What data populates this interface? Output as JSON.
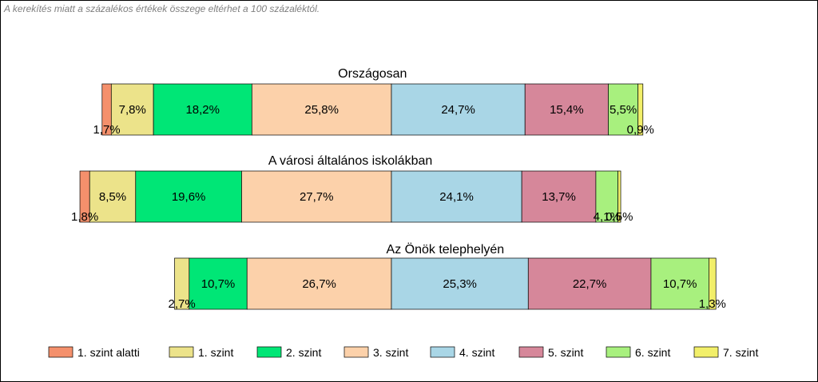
{
  "note": "A kerekítés miatt a  százalékos értékek összege eltérhet a 100 százaléktól.",
  "chart_data": {
    "type": "bar",
    "orientation": "horizontal-stacked",
    "categories": [
      "1. szint alatti",
      "1. szint",
      "2. szint",
      "3. szint",
      "4. szint",
      "5. szint",
      "6. szint",
      "7. szint"
    ],
    "colors": [
      "#f4906c",
      "#ece38a",
      "#00e676",
      "#fcd1aa",
      "#a9d6e6",
      "#d6879a",
      "#a8f07e",
      "#f2ef6a"
    ],
    "bars": [
      {
        "title": "Országosan",
        "values": [
          1.7,
          7.8,
          18.2,
          25.8,
          24.7,
          15.4,
          5.5,
          0.9
        ],
        "labels": [
          "1,7%",
          "7,8%",
          "18,2%",
          "25,8%",
          "24,7%",
          "15,4%",
          "5,5%",
          "0,9%"
        ]
      },
      {
        "title": "A városi általános iskolákban",
        "values": [
          1.8,
          8.5,
          19.6,
          27.7,
          24.1,
          13.7,
          4.1,
          0.5
        ],
        "labels": [
          "1,8%",
          "8,5%",
          "19,6%",
          "27,7%",
          "24,1%",
          "13,7%",
          "4,1%",
          "0,5%"
        ]
      },
      {
        "title": "Az Önök telephelyén",
        "values": [
          0,
          2.7,
          10.7,
          26.7,
          25.3,
          22.7,
          10.7,
          1.3
        ],
        "labels": [
          "",
          "2,7%",
          "10,7%",
          "26,7%",
          "25,3%",
          "22,7%",
          "10,7%",
          "1,3%"
        ]
      }
    ],
    "legend": "bottom"
  }
}
